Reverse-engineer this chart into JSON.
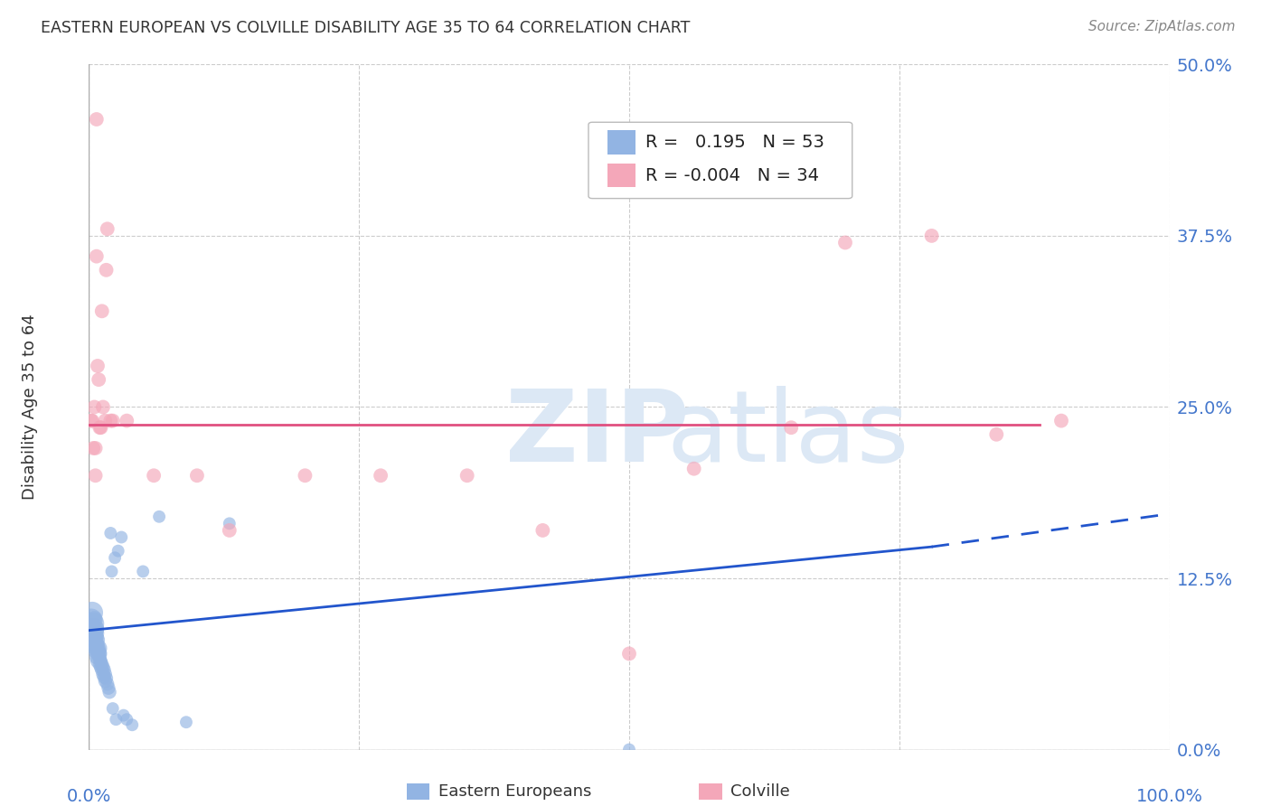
{
  "title": "EASTERN EUROPEAN VS COLVILLE DISABILITY AGE 35 TO 64 CORRELATION CHART",
  "source": "Source: ZipAtlas.com",
  "ylabel": "Disability Age 35 to 64",
  "xlim": [
    0.0,
    1.0
  ],
  "ylim": [
    0.0,
    0.5
  ],
  "yticks": [
    0.0,
    0.125,
    0.25,
    0.375,
    0.5
  ],
  "ytick_labels": [
    "0.0%",
    "12.5%",
    "25.0%",
    "37.5%",
    "50.0%"
  ],
  "xticks": [
    0.0,
    0.25,
    0.5,
    0.75,
    1.0
  ],
  "xtick_labels": [
    "0.0%",
    "",
    "",
    "",
    "100.0%"
  ],
  "blue_R": 0.195,
  "blue_N": 53,
  "pink_R": -0.004,
  "pink_N": 34,
  "blue_color": "#92b4e3",
  "pink_color": "#f4a7b9",
  "blue_line_color": "#2255cc",
  "pink_line_color": "#e05080",
  "watermark_color": "#dce8f5",
  "grid_color": "#cccccc",
  "axis_label_color": "#4477cc",
  "title_color": "#333333",
  "blue_scatter_x": [
    0.002,
    0.003,
    0.003,
    0.004,
    0.004,
    0.004,
    0.005,
    0.005,
    0.005,
    0.006,
    0.006,
    0.006,
    0.006,
    0.007,
    0.007,
    0.007,
    0.008,
    0.008,
    0.009,
    0.009,
    0.009,
    0.01,
    0.01,
    0.01,
    0.011,
    0.011,
    0.012,
    0.012,
    0.013,
    0.013,
    0.014,
    0.014,
    0.015,
    0.015,
    0.016,
    0.017,
    0.018,
    0.019,
    0.02,
    0.021,
    0.022,
    0.024,
    0.025,
    0.027,
    0.03,
    0.032,
    0.035,
    0.04,
    0.05,
    0.065,
    0.09,
    0.13,
    0.5
  ],
  "blue_scatter_y": [
    0.095,
    0.1,
    0.085,
    0.085,
    0.088,
    0.092,
    0.078,
    0.082,
    0.095,
    0.075,
    0.078,
    0.082,
    0.088,
    0.072,
    0.076,
    0.08,
    0.068,
    0.073,
    0.065,
    0.07,
    0.074,
    0.062,
    0.066,
    0.07,
    0.06,
    0.064,
    0.058,
    0.062,
    0.055,
    0.06,
    0.053,
    0.058,
    0.05,
    0.055,
    0.052,
    0.048,
    0.045,
    0.042,
    0.158,
    0.13,
    0.03,
    0.14,
    0.022,
    0.145,
    0.155,
    0.025,
    0.022,
    0.018,
    0.13,
    0.17,
    0.02,
    0.165,
    0.0
  ],
  "pink_scatter_x": [
    0.002,
    0.003,
    0.004,
    0.005,
    0.006,
    0.006,
    0.007,
    0.007,
    0.008,
    0.009,
    0.01,
    0.011,
    0.012,
    0.013,
    0.015,
    0.016,
    0.017,
    0.02,
    0.022,
    0.035,
    0.06,
    0.1,
    0.13,
    0.2,
    0.27,
    0.35,
    0.42,
    0.5,
    0.56,
    0.65,
    0.7,
    0.78,
    0.84,
    0.9
  ],
  "pink_scatter_y": [
    0.24,
    0.24,
    0.22,
    0.25,
    0.2,
    0.22,
    0.36,
    0.46,
    0.28,
    0.27,
    0.235,
    0.235,
    0.32,
    0.25,
    0.24,
    0.35,
    0.38,
    0.24,
    0.24,
    0.24,
    0.2,
    0.2,
    0.16,
    0.2,
    0.2,
    0.2,
    0.16,
    0.07,
    0.205,
    0.235,
    0.37,
    0.375,
    0.23,
    0.24
  ],
  "blue_trend_x0": 0.0,
  "blue_trend_x1": 0.78,
  "blue_trend_x2": 1.0,
  "blue_trend_y0": 0.087,
  "blue_trend_y1": 0.148,
  "blue_trend_y2": 0.172,
  "pink_trend_y": 0.237,
  "pink_trend_xmax": 0.88
}
